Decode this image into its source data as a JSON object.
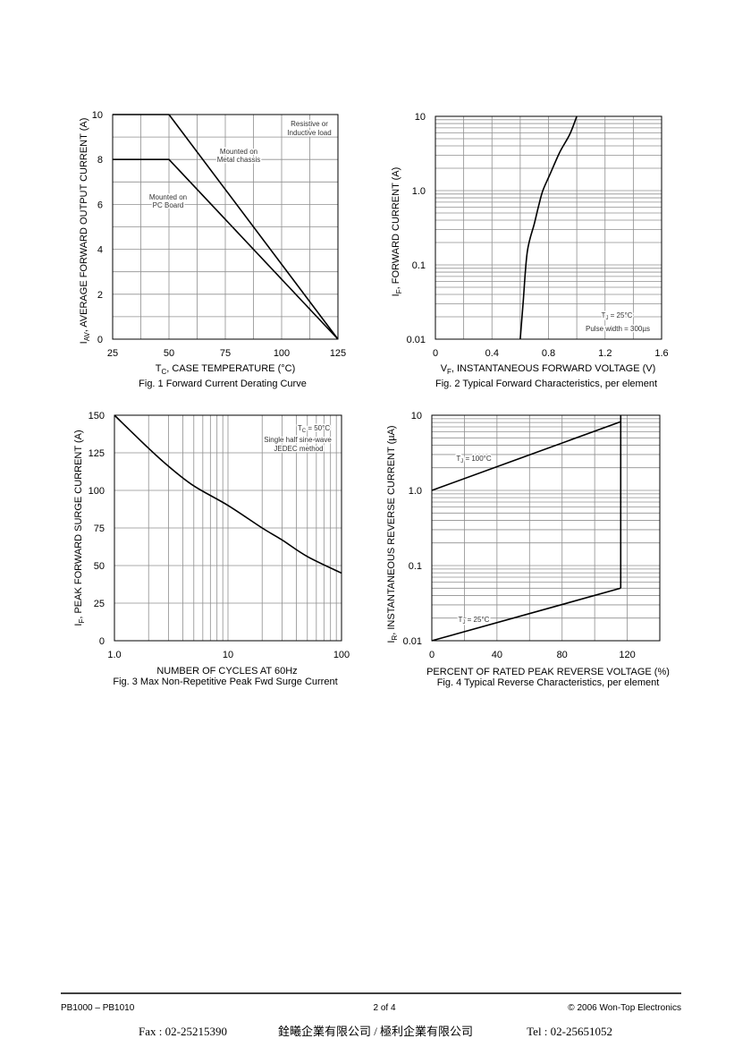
{
  "colors": {
    "ink": "#000000",
    "grid": "#8f8f8f",
    "background": "#ffffff"
  },
  "chart_data": [
    {
      "type": "line",
      "title": "Fig. 1  Forward Current Derating Curve",
      "xlabel": {
        "symbol": "T",
        "subscript": "C",
        "text": ", CASE TEMPERATURE (°C)"
      },
      "ylabel": {
        "symbol": "I",
        "subscript": "AV",
        "text": ", AVERAGE FORWARD OUTPUT CURRENT (A)"
      },
      "xscale": "linear",
      "yscale": "linear",
      "xlim": [
        25,
        125
      ],
      "ylim": [
        0,
        10
      ],
      "xticks": [
        25,
        50,
        75,
        100,
        125
      ],
      "xtick_labels": [
        "25",
        "50",
        "75",
        "100",
        "125"
      ],
      "yticks": [
        0,
        2,
        4,
        6,
        8,
        10
      ],
      "ytick_labels": [
        "0",
        "2",
        "4",
        "6",
        "8",
        "10"
      ],
      "grid": {
        "on": true,
        "x_step": 12.5,
        "y_step": 1
      },
      "annotations": [
        [
          "Resistive or",
          "Inductive load"
        ]
      ],
      "series": [
        {
          "label": [
            "Mounted on",
            "Metal chassis"
          ],
          "x": [
            25,
            50,
            125
          ],
          "y": [
            10,
            10,
            0
          ]
        },
        {
          "label": [
            "Mounted on",
            "PC Board"
          ],
          "x": [
            25,
            50,
            125
          ],
          "y": [
            8,
            8,
            0
          ]
        }
      ]
    },
    {
      "type": "line",
      "title": "Fig. 2  Typical Forward Characteristics, per element",
      "xlabel": {
        "symbol": "V",
        "subscript": "F",
        "text": ", INSTANTANEOUS FORWARD VOLTAGE (V)"
      },
      "ylabel": {
        "symbol": "I",
        "subscript": "F",
        "text": ", FORWARD CURRENT (A)"
      },
      "xscale": "linear",
      "yscale": "log",
      "xlim": [
        0,
        1.6
      ],
      "ylim": [
        0.01,
        10
      ],
      "xticks": [
        0,
        0.4,
        0.8,
        1.2,
        1.6
      ],
      "xtick_labels": [
        "0",
        "0.4",
        "0.8",
        "1.2",
        "1.6"
      ],
      "yticks": [
        0.01,
        0.1,
        1,
        10
      ],
      "ytick_labels": [
        "0.01",
        "0.1",
        "1.0",
        "10"
      ],
      "grid": {
        "on": true,
        "x_step": 0.2,
        "y_step": "log"
      },
      "conditions": {
        "tj": {
          "symbol": "T",
          "subscript": "J",
          "text": " = 25°C"
        },
        "pulse": "Pulse width = 300µs"
      },
      "series": [
        {
          "x": [
            0.6,
            0.62,
            0.65,
            0.7,
            0.73,
            0.76,
            0.81,
            0.88,
            0.95,
            1.0
          ],
          "y": [
            0.01,
            0.03,
            0.15,
            0.36,
            0.62,
            1.0,
            1.65,
            3.3,
            5.7,
            10
          ]
        }
      ]
    },
    {
      "type": "line",
      "title": "Fig. 3  Max Non-Repetitive Peak Fwd Surge Current",
      "xlabel": {
        "text": "NUMBER OF CYCLES AT 60Hz"
      },
      "ylabel": {
        "symbol": "I",
        "subscript": "F",
        "text": ", PEAK FORWARD SURGE CURRENT (A)"
      },
      "xscale": "log",
      "yscale": "linear",
      "xlim": [
        1,
        100
      ],
      "ylim": [
        0,
        150
      ],
      "xticks": [
        1,
        10,
        100
      ],
      "xtick_labels": [
        "1.0",
        "10",
        "100"
      ],
      "yticks": [
        0,
        25,
        50,
        75,
        100,
        125,
        150
      ],
      "ytick_labels": [
        "0",
        "25",
        "50",
        "75",
        "100",
        "125",
        "150"
      ],
      "grid": {
        "on": true,
        "x_step": "log",
        "y_step": 25
      },
      "conditions": {
        "tc": {
          "symbol": "T",
          "subscript": "C",
          "text": " = 50°C"
        },
        "lines": [
          "Single half sine-wave",
          "JEDEC method"
        ]
      },
      "series": [
        {
          "x": [
            1,
            2,
            3,
            5,
            10,
            20,
            30,
            50,
            100
          ],
          "y": [
            150,
            128,
            116,
            103,
            90,
            75,
            67,
            56,
            45
          ]
        }
      ]
    },
    {
      "type": "line",
      "title": "Fig. 4  Typical Reverse Characteristics, per element",
      "xlabel": {
        "text": "PERCENT OF RATED PEAK REVERSE VOLTAGE (%)"
      },
      "ylabel": {
        "symbol": "I",
        "subscript": "R",
        "text": ", INSTANTANEOUS REVERSE CURRENT (µA)"
      },
      "xscale": "linear",
      "yscale": "log",
      "xlim": [
        0,
        140
      ],
      "ylim": [
        0.01,
        10
      ],
      "xticks": [
        0,
        40,
        80,
        120
      ],
      "xtick_labels": [
        "0",
        "40",
        "80",
        "120"
      ],
      "yticks": [
        0.01,
        0.1,
        1,
        10
      ],
      "ytick_labels": [
        "0.01",
        "0.1",
        "1.0",
        "10"
      ],
      "grid": {
        "on": true,
        "x_step": 20,
        "y_step": "log"
      },
      "series": [
        {
          "label": {
            "symbol": "T",
            "subscript": "J",
            "text": " = 100°C"
          },
          "x": [
            0,
            116
          ],
          "y": [
            1.0,
            8.2
          ]
        },
        {
          "label": {
            "symbol": "T",
            "subscript": "J",
            "text": " = 25°C"
          },
          "x": [
            0,
            116
          ],
          "y": [
            0.01,
            0.05
          ]
        },
        {
          "x": [
            116,
            116
          ],
          "y": [
            0.05,
            10
          ]
        }
      ]
    }
  ],
  "footer": {
    "part_range": "PB1000 – PB1010",
    "page": "2 of 4",
    "copyright": "© 2006 Won-Top Electronics",
    "fax": "Fax : 02-25215390",
    "company": "銓曦企業有限公司 / 極利企業有限公司",
    "tel": "Tel : 02-25651052"
  }
}
